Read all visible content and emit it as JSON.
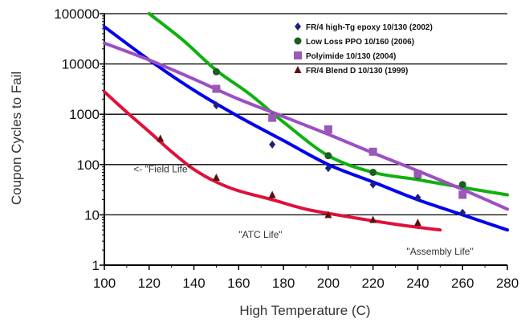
{
  "chart_data": {
    "type": "line",
    "title": "",
    "xlabel": "High Temperature (C)",
    "ylabel": "Coupon Cycles to Fail",
    "xlim": [
      100,
      280
    ],
    "ylim": [
      1,
      100000
    ],
    "yscale": "log",
    "grid": "horizontal",
    "legend_position": "top-right",
    "x_ticks": [
      "100",
      "120",
      "140",
      "160",
      "180",
      "200",
      "220",
      "240",
      "260",
      "280"
    ],
    "y_ticks": [
      "1",
      "10",
      "100",
      "1000",
      "10000",
      "100000"
    ],
    "series": [
      {
        "name": "FR/4 high-Tg epoxy 10/130 (2002)",
        "color": "#0000ee",
        "marker": "diamond",
        "marker_color": "#1a237e",
        "points": [
          {
            "x": 150,
            "y": 1500
          },
          {
            "x": 175,
            "y": 250
          },
          {
            "x": 200,
            "y": 85
          },
          {
            "x": 220,
            "y": 40
          },
          {
            "x": 240,
            "y": 22
          },
          {
            "x": 260,
            "y": 11
          }
        ],
        "fit": [
          {
            "x": 100,
            "y": 55000
          },
          {
            "x": 120,
            "y": 12000
          },
          {
            "x": 140,
            "y": 3000
          },
          {
            "x": 160,
            "y": 900
          },
          {
            "x": 180,
            "y": 300
          },
          {
            "x": 200,
            "y": 100
          },
          {
            "x": 220,
            "y": 45
          },
          {
            "x": 240,
            "y": 20
          },
          {
            "x": 260,
            "y": 10
          },
          {
            "x": 280,
            "y": 5
          }
        ]
      },
      {
        "name": "Low Loss PPO 10/160 (2006)",
        "color": "#10b010",
        "marker": "circle",
        "marker_color": "#1b5e20",
        "points": [
          {
            "x": 150,
            "y": 7000
          },
          {
            "x": 175,
            "y": 900
          },
          {
            "x": 200,
            "y": 150
          },
          {
            "x": 220,
            "y": 70
          },
          {
            "x": 240,
            "y": 60
          },
          {
            "x": 260,
            "y": 40
          }
        ],
        "fit": [
          {
            "x": 120,
            "y": 100000
          },
          {
            "x": 135,
            "y": 30000
          },
          {
            "x": 150,
            "y": 7500
          },
          {
            "x": 165,
            "y": 2500
          },
          {
            "x": 180,
            "y": 700
          },
          {
            "x": 200,
            "y": 150
          },
          {
            "x": 220,
            "y": 70
          },
          {
            "x": 240,
            "y": 50
          },
          {
            "x": 260,
            "y": 35
          },
          {
            "x": 280,
            "y": 25
          }
        ]
      },
      {
        "name": "Polyimide 10/130 (2004)",
        "color": "#9c4fc2",
        "marker": "square",
        "marker_color": "#9b59b6",
        "points": [
          {
            "x": 150,
            "y": 3200
          },
          {
            "x": 175,
            "y": 850
          },
          {
            "x": 200,
            "y": 500
          },
          {
            "x": 220,
            "y": 180
          },
          {
            "x": 240,
            "y": 65
          },
          {
            "x": 260,
            "y": 25
          }
        ],
        "fit": [
          {
            "x": 100,
            "y": 26000
          },
          {
            "x": 120,
            "y": 12000
          },
          {
            "x": 140,
            "y": 5000
          },
          {
            "x": 160,
            "y": 2000
          },
          {
            "x": 180,
            "y": 900
          },
          {
            "x": 200,
            "y": 400
          },
          {
            "x": 220,
            "y": 170
          },
          {
            "x": 240,
            "y": 75
          },
          {
            "x": 260,
            "y": 32
          },
          {
            "x": 280,
            "y": 13
          }
        ]
      },
      {
        "name": "FR/4 Blend D 10/130 (1999)",
        "color": "#e0103a",
        "marker": "triangle",
        "marker_color": "#5d1010",
        "points": [
          {
            "x": 125,
            "y": 330
          },
          {
            "x": 150,
            "y": 55
          },
          {
            "x": 175,
            "y": 25
          },
          {
            "x": 200,
            "y": 10
          },
          {
            "x": 220,
            "y": 8
          },
          {
            "x": 240,
            "y": 7
          }
        ],
        "fit": [
          {
            "x": 100,
            "y": 2800
          },
          {
            "x": 110,
            "y": 1100
          },
          {
            "x": 120,
            "y": 450
          },
          {
            "x": 130,
            "y": 180
          },
          {
            "x": 140,
            "y": 80
          },
          {
            "x": 150,
            "y": 45
          },
          {
            "x": 160,
            "y": 30
          },
          {
            "x": 175,
            "y": 20
          },
          {
            "x": 190,
            "y": 13
          },
          {
            "x": 210,
            "y": 9
          },
          {
            "x": 230,
            "y": 6.5
          },
          {
            "x": 250,
            "y": 5
          }
        ]
      }
    ],
    "annotations": [
      {
        "text": "<- \"Field Life\"",
        "x": 113,
        "y": 70
      },
      {
        "text": "\"ATC Life\"",
        "x": 160,
        "y": 3.5
      },
      {
        "text": "\"Assembly Life\"",
        "x": 235,
        "y": 1.6
      }
    ]
  }
}
